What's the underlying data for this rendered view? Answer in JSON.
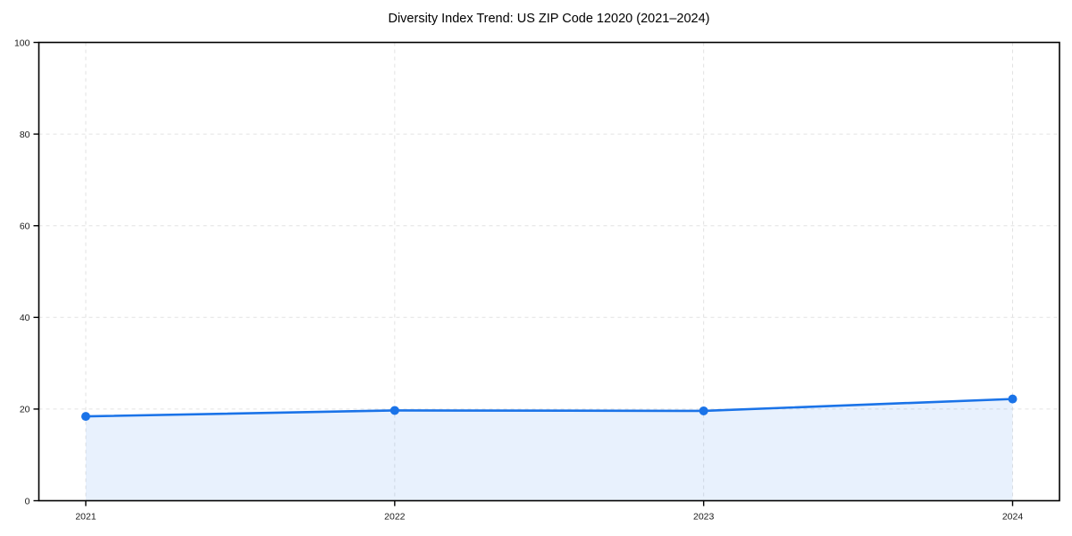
{
  "chart_data": {
    "type": "line",
    "title": "Diversity Index Trend: US ZIP Code 12020 (2021–2024)",
    "categories": [
      "2021",
      "2022",
      "2023",
      "2024"
    ],
    "series": [
      {
        "name": "Diversity Index",
        "values": [
          18.4,
          19.7,
          19.6,
          22.2
        ]
      }
    ],
    "xlabel": "",
    "ylabel": "",
    "ylim": [
      0,
      100
    ],
    "yticks": [
      0,
      20,
      40,
      60,
      80,
      100
    ],
    "grid": true,
    "grid_style": "dashed",
    "legend_position": "none",
    "area_fill": true,
    "colors": {
      "line": "#1a73e8",
      "marker": "#1a73e8",
      "fill": "rgba(26, 115, 232, 0.10)",
      "grid": "#e2e2e2",
      "spine": "#000000",
      "tick_label": "#1a1a1a",
      "title": "#000000",
      "background": "#ffffff"
    }
  }
}
